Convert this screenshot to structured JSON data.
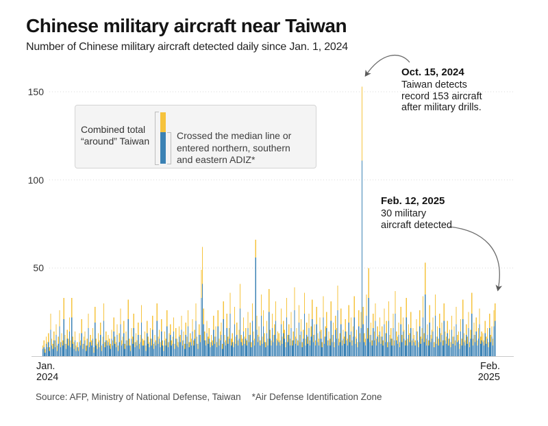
{
  "header": {
    "title": "Chinese military aircraft near Taiwan",
    "subtitle": "Number of Chinese military aircraft detected daily since Jan. 1, 2024"
  },
  "legend": {
    "total_label_lines": [
      "Combined total",
      "“around” Taiwan"
    ],
    "median_label_lines": [
      "Crossed the median line or",
      "entered northern, southern",
      "and eastern ADIZ*"
    ]
  },
  "axis": {
    "y_ticks": [
      "150",
      "100",
      "50"
    ],
    "x_start_lines": [
      "Jan.",
      "2024"
    ],
    "x_end_lines": [
      "Feb.",
      "2025"
    ]
  },
  "annotations": [
    {
      "date": "Oct. 15, 2024",
      "lines": [
        "Taiwan detects",
        "record 153 aircraft",
        "after military drills."
      ]
    },
    {
      "date": "Feb. 12, 2025",
      "lines": [
        "30 military",
        "aircraft detected"
      ]
    }
  ],
  "source": {
    "text": "Source: AFP, Ministry of National Defense, Taiwan",
    "footnote": "*Air Defense Identification Zone"
  },
  "colors": {
    "total_bar": "#F6C33C",
    "median_bar": "#3B82B4",
    "grid": "#d9d9d9",
    "axis": "#c8c8c8",
    "legend_bg": "#f4f4f4",
    "legend_border": "#d4d4d4",
    "arrow": "#6b6b6b"
  },
  "chart_data": {
    "type": "bar",
    "stacked": true,
    "title": "Chinese military aircraft near Taiwan",
    "subtitle": "Number of Chinese military aircraft detected daily since Jan. 1, 2024",
    "x_start": "2024-01-01",
    "x_end": "2025-02-12",
    "n_days": 409,
    "ylim": [
      0,
      160
    ],
    "y_ticks": [
      50,
      100,
      150
    ],
    "grid": "dotted horizontal",
    "legend_position": "top-left box",
    "highlights": [
      {
        "date": "2024-10-15",
        "total": 153,
        "median_crossed": 111,
        "note": "Taiwan detects record 153 aircraft after military drills."
      },
      {
        "date": "2025-02-12",
        "total": 30,
        "note": "30 military aircraft detected"
      }
    ],
    "series": [
      {
        "name": "Combined total “around” Taiwan (full bar, yellow cap)",
        "values": [
          6,
          9,
          4,
          11,
          8,
          13,
          5,
          24,
          10,
          7,
          14,
          9,
          18,
          6,
          11,
          26,
          8,
          13,
          9,
          33,
          12,
          7,
          15,
          10,
          22,
          9,
          33,
          11,
          8,
          14,
          6,
          8,
          5,
          13,
          9,
          21,
          7,
          11,
          14,
          6,
          10,
          24,
          8,
          12,
          9,
          16,
          5,
          28,
          10,
          7,
          13,
          9,
          19,
          6,
          11,
          30,
          8,
          14,
          9,
          12,
          10,
          7,
          15,
          9,
          22,
          11,
          8,
          18,
          6,
          13,
          27,
          9,
          11,
          20,
          7,
          14,
          9,
          32,
          10,
          6,
          16,
          11,
          24,
          8,
          13,
          9,
          19,
          7,
          12,
          29,
          10,
          9,
          14,
          6,
          20,
          11,
          8,
          16,
          10,
          23,
          7,
          12,
          9,
          30,
          11,
          15,
          8,
          21,
          9,
          6,
          14,
          10,
          26,
          8,
          13,
          18,
          9,
          11,
          22,
          7,
          16,
          10,
          8,
          17,
          12,
          23,
          9,
          14,
          7,
          19,
          11,
          26,
          8,
          13,
          10,
          21,
          9,
          15,
          30,
          11,
          7,
          18,
          12,
          49,
          62,
          27,
          14,
          9,
          20,
          11,
          16,
          8,
          12,
          9,
          23,
          11,
          17,
          8,
          26,
          10,
          14,
          19,
          7,
          31,
          12,
          9,
          24,
          11,
          16,
          36,
          10,
          13,
          8,
          28,
          11,
          19,
          9,
          15,
          41,
          12,
          10,
          22,
          11,
          16,
          9,
          25,
          12,
          19,
          8,
          30,
          14,
          10,
          66,
          23,
          12,
          17,
          9,
          35,
          11,
          26,
          13,
          8,
          20,
          10,
          38,
          15,
          9,
          24,
          12,
          18,
          31,
          10,
          14,
          13,
          9,
          27,
          11,
          20,
          15,
          8,
          33,
          12,
          18,
          10,
          25,
          9,
          14,
          39,
          11,
          16,
          9,
          29,
          12,
          21,
          8,
          15,
          36,
          10,
          19,
          11,
          24,
          9,
          17,
          32,
          12,
          18,
          9,
          28,
          13,
          10,
          22,
          15,
          8,
          34,
          11,
          17,
          25,
          9,
          14,
          10,
          31,
          12,
          19,
          8,
          23,
          16,
          40,
          10,
          13,
          27,
          9,
          15,
          11,
          21,
          14,
          10,
          29,
          12,
          22,
          9,
          17,
          34,
          11,
          15,
          8,
          26,
          13,
          25,
          153,
          28,
          13,
          10,
          35,
          16,
          50,
          12,
          19,
          9,
          24,
          14,
          30,
          10,
          17,
          12,
          22,
          11,
          17,
          9,
          27,
          13,
          20,
          8,
          31,
          12,
          16,
          10,
          24,
          9,
          37,
          14,
          11,
          19,
          8,
          28,
          12,
          22,
          15,
          9,
          33,
          10,
          18,
          13,
          25,
          9,
          16,
          12,
          9,
          21,
          14,
          8,
          26,
          11,
          16,
          34,
          13,
          53,
          10,
          18,
          9,
          29,
          12,
          15,
          22,
          8,
          35,
          11,
          17,
          10,
          24,
          13,
          19,
          9,
          30,
          14,
          11,
          20,
          10,
          15,
          8,
          23,
          11,
          17,
          9,
          28,
          12,
          14,
          7,
          21,
          10,
          32,
          13,
          9,
          18,
          11,
          25,
          8,
          15,
          36,
          10,
          19,
          12,
          22,
          9,
          16,
          27,
          11,
          14,
          13,
          9,
          20,
          11,
          16,
          8,
          24,
          12,
          17,
          10,
          26,
          30
        ]
      },
      {
        "name": "Crossed the median line or entered northern, southern and eastern ADIZ (blue lower portion)",
        "values": [
          4,
          5,
          2,
          7,
          5,
          8,
          3,
          15,
          6,
          4,
          9,
          5,
          12,
          3,
          7,
          17,
          5,
          8,
          6,
          21,
          7,
          4,
          10,
          6,
          14,
          5,
          22,
          7,
          4,
          9,
          3,
          5,
          3,
          8,
          6,
          13,
          4,
          7,
          9,
          3,
          6,
          16,
          5,
          8,
          6,
          10,
          2,
          19,
          6,
          4,
          8,
          5,
          12,
          3,
          7,
          20,
          5,
          9,
          6,
          8,
          6,
          4,
          10,
          6,
          14,
          7,
          5,
          12,
          3,
          8,
          18,
          6,
          7,
          13,
          4,
          9,
          6,
          21,
          6,
          3,
          10,
          7,
          16,
          5,
          8,
          6,
          12,
          4,
          8,
          19,
          6,
          6,
          9,
          3,
          13,
          7,
          5,
          10,
          6,
          15,
          4,
          8,
          6,
          20,
          7,
          10,
          5,
          14,
          6,
          3,
          9,
          6,
          17,
          5,
          8,
          12,
          6,
          7,
          14,
          4,
          10,
          6,
          5,
          11,
          8,
          15,
          6,
          9,
          4,
          12,
          7,
          17,
          5,
          8,
          6,
          14,
          6,
          10,
          20,
          7,
          4,
          12,
          8,
          33,
          41,
          18,
          9,
          6,
          13,
          7,
          10,
          5,
          8,
          6,
          15,
          7,
          11,
          5,
          17,
          6,
          9,
          12,
          4,
          21,
          8,
          6,
          16,
          7,
          10,
          24,
          6,
          8,
          5,
          18,
          7,
          12,
          6,
          10,
          27,
          8,
          6,
          14,
          7,
          10,
          6,
          16,
          8,
          12,
          5,
          20,
          9,
          6,
          56,
          15,
          8,
          11,
          6,
          23,
          7,
          17,
          8,
          5,
          13,
          6,
          25,
          10,
          6,
          16,
          8,
          12,
          20,
          6,
          9,
          8,
          6,
          18,
          7,
          13,
          10,
          5,
          22,
          8,
          12,
          6,
          16,
          6,
          9,
          26,
          7,
          10,
          6,
          19,
          8,
          14,
          5,
          10,
          24,
          6,
          12,
          7,
          16,
          6,
          11,
          21,
          8,
          12,
          6,
          18,
          8,
          6,
          14,
          10,
          5,
          22,
          7,
          11,
          16,
          6,
          9,
          6,
          20,
          8,
          12,
          5,
          15,
          10,
          26,
          6,
          8,
          18,
          6,
          10,
          7,
          14,
          9,
          6,
          19,
          8,
          14,
          6,
          11,
          22,
          7,
          10,
          5,
          17,
          8,
          16,
          111,
          18,
          8,
          6,
          23,
          10,
          33,
          8,
          12,
          6,
          16,
          9,
          20,
          6,
          11,
          8,
          14,
          7,
          11,
          6,
          18,
          8,
          13,
          5,
          20,
          8,
          10,
          6,
          16,
          6,
          24,
          9,
          7,
          12,
          5,
          18,
          8,
          14,
          10,
          6,
          22,
          6,
          12,
          8,
          16,
          6,
          10,
          8,
          6,
          14,
          9,
          5,
          17,
          7,
          10,
          22,
          8,
          35,
          6,
          12,
          6,
          19,
          8,
          10,
          14,
          5,
          23,
          7,
          11,
          6,
          16,
          8,
          12,
          6,
          20,
          9,
          7,
          13,
          6,
          10,
          5,
          15,
          7,
          11,
          6,
          18,
          8,
          9,
          4,
          14,
          6,
          21,
          8,
          6,
          12,
          7,
          16,
          5,
          10,
          24,
          6,
          12,
          8,
          14,
          6,
          10,
          18,
          7,
          9,
          8,
          6,
          13,
          7,
          10,
          5,
          16,
          8,
          11,
          6,
          17,
          20
        ]
      }
    ]
  }
}
